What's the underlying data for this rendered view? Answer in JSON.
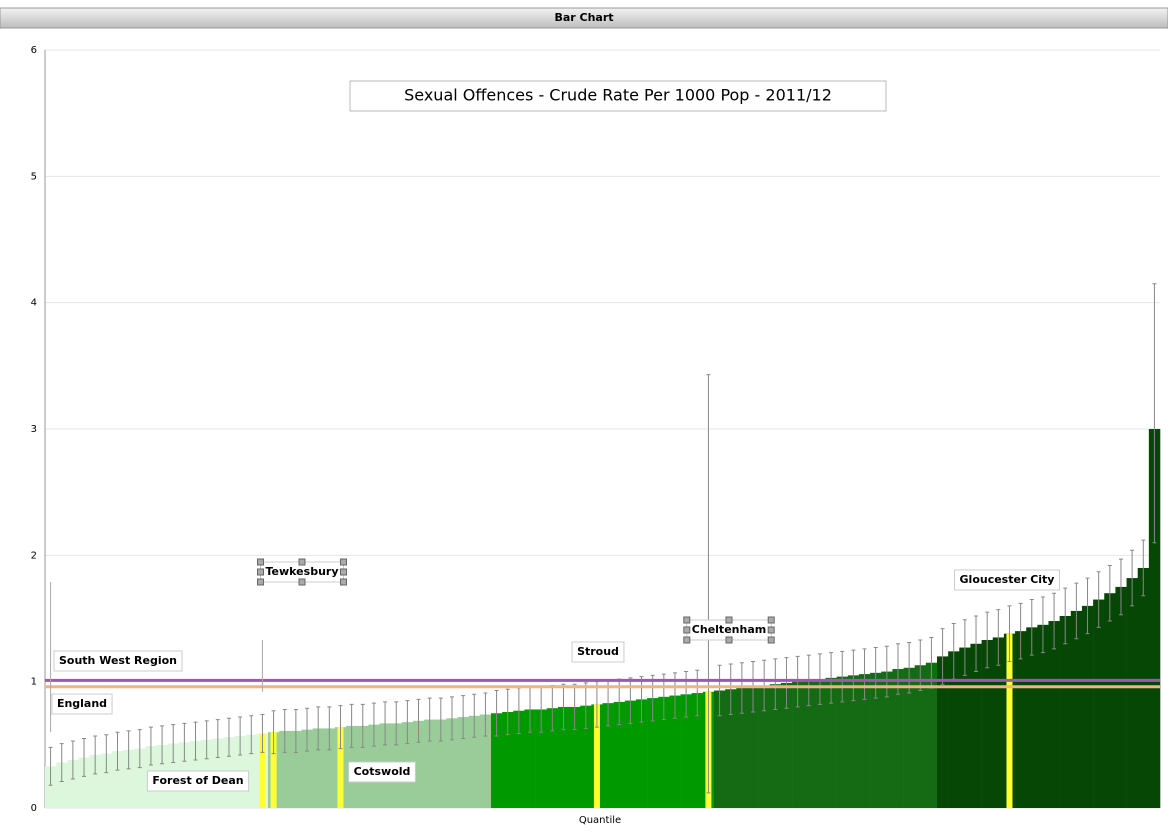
{
  "window": {
    "title": "Bar Chart"
  },
  "chart_data": {
    "type": "bar",
    "title": "Sexual Offences - Crude Rate Per 1000 Pop - 2011/12",
    "xlabel": "Quantile",
    "ylim": [
      0,
      6
    ],
    "yticks": [
      0,
      1,
      2,
      3,
      4,
      5,
      6
    ],
    "grid": true,
    "highlight_color": "#ffff33",
    "error_color": "#888888",
    "series": [
      {
        "color": "#dcf7dc",
        "values": [
          0.33,
          0.36,
          0.38,
          0.4,
          0.42,
          0.43,
          0.45,
          0.46,
          0.47,
          0.49,
          0.5,
          0.51,
          0.52,
          0.53,
          0.54,
          0.55,
          0.56,
          0.57,
          0.58,
          0.59
        ],
        "lower": [
          0.18,
          0.21,
          0.23,
          0.25,
          0.27,
          0.28,
          0.3,
          0.31,
          0.32,
          0.34,
          0.35,
          0.36,
          0.37,
          0.38,
          0.39,
          0.4,
          0.41,
          0.42,
          0.43,
          0.44
        ],
        "upper": [
          0.48,
          0.51,
          0.53,
          0.55,
          0.57,
          0.58,
          0.6,
          0.61,
          0.62,
          0.64,
          0.65,
          0.66,
          0.67,
          0.68,
          0.69,
          0.7,
          0.71,
          0.72,
          0.73,
          0.74
        ],
        "labels": [
          null,
          null,
          null,
          null,
          null,
          null,
          null,
          null,
          null,
          null,
          null,
          null,
          null,
          null,
          null,
          null,
          null,
          null,
          null,
          "Forest of Dean"
        ]
      },
      {
        "color": "#99cc99",
        "values": [
          0.6,
          0.61,
          0.61,
          0.62,
          0.63,
          0.63,
          0.64,
          0.65,
          0.65,
          0.66,
          0.67,
          0.67,
          0.68,
          0.69,
          0.7,
          0.7,
          0.71,
          0.72,
          0.73,
          0.74
        ],
        "lower": [
          0.43,
          0.44,
          0.44,
          0.45,
          0.46,
          0.46,
          0.47,
          0.48,
          0.48,
          0.49,
          0.5,
          0.5,
          0.51,
          0.52,
          0.53,
          0.53,
          0.54,
          0.55,
          0.56,
          0.57
        ],
        "upper": [
          0.77,
          0.78,
          0.78,
          0.79,
          0.8,
          0.8,
          0.81,
          0.82,
          0.82,
          0.83,
          0.84,
          0.84,
          0.85,
          0.86,
          0.87,
          0.87,
          0.88,
          0.89,
          0.9,
          0.91
        ],
        "labels": [
          "Tewkesbury",
          null,
          null,
          null,
          null,
          null,
          "Cotswold",
          null,
          null,
          null,
          null,
          null,
          null,
          null,
          null,
          null,
          null,
          null,
          null,
          null
        ]
      },
      {
        "color": "#009900",
        "values": [
          0.75,
          0.76,
          0.77,
          0.78,
          0.78,
          0.79,
          0.8,
          0.8,
          0.81,
          0.82,
          0.83,
          0.84,
          0.85,
          0.86,
          0.87,
          0.88,
          0.89,
          0.9,
          0.91,
          0.92
        ],
        "lower": [
          0.57,
          0.58,
          0.59,
          0.6,
          0.6,
          0.61,
          0.62,
          0.62,
          0.63,
          0.64,
          0.65,
          0.66,
          0.67,
          0.68,
          0.69,
          0.7,
          0.71,
          0.72,
          0.73,
          0.12
        ],
        "upper": [
          0.93,
          0.94,
          0.95,
          0.96,
          0.96,
          0.97,
          0.98,
          0.98,
          0.99,
          1.0,
          1.01,
          1.02,
          1.03,
          1.04,
          1.05,
          1.06,
          1.07,
          1.08,
          1.09,
          3.43
        ],
        "labels": [
          null,
          null,
          null,
          null,
          null,
          null,
          null,
          null,
          null,
          "Stroud",
          null,
          null,
          null,
          null,
          null,
          null,
          null,
          null,
          null,
          "Cheltenham"
        ]
      },
      {
        "color": "#146b14",
        "values": [
          0.93,
          0.94,
          0.95,
          0.96,
          0.97,
          0.98,
          0.99,
          1.0,
          1.01,
          1.02,
          1.03,
          1.04,
          1.05,
          1.06,
          1.07,
          1.08,
          1.1,
          1.11,
          1.13,
          1.15
        ],
        "lower": [
          0.73,
          0.74,
          0.75,
          0.76,
          0.77,
          0.78,
          0.79,
          0.8,
          0.81,
          0.82,
          0.83,
          0.84,
          0.85,
          0.86,
          0.87,
          0.88,
          0.9,
          0.91,
          0.93,
          0.95
        ],
        "upper": [
          1.13,
          1.14,
          1.15,
          1.16,
          1.17,
          1.18,
          1.19,
          1.2,
          1.21,
          1.22,
          1.23,
          1.24,
          1.25,
          1.26,
          1.27,
          1.28,
          1.3,
          1.31,
          1.33,
          1.35
        ],
        "labels": [
          null,
          null,
          null,
          null,
          null,
          null,
          null,
          null,
          null,
          null,
          null,
          null,
          null,
          null,
          null,
          null,
          null,
          null,
          null,
          null
        ]
      },
      {
        "color": "#064706",
        "values": [
          1.2,
          1.24,
          1.27,
          1.3,
          1.33,
          1.35,
          1.38,
          1.4,
          1.43,
          1.45,
          1.48,
          1.52,
          1.56,
          1.6,
          1.65,
          1.7,
          1.75,
          1.82,
          1.9,
          3.0
        ],
        "lower": [
          0.98,
          1.02,
          1.05,
          1.08,
          1.11,
          1.13,
          1.16,
          1.18,
          1.21,
          1.23,
          1.26,
          1.3,
          1.34,
          1.38,
          1.43,
          1.48,
          1.53,
          1.6,
          1.68,
          2.1
        ],
        "upper": [
          1.42,
          1.46,
          1.49,
          1.52,
          1.55,
          1.57,
          1.6,
          1.62,
          1.65,
          1.67,
          1.7,
          1.74,
          1.78,
          1.82,
          1.87,
          1.92,
          1.97,
          2.04,
          2.12,
          4.15
        ],
        "labels": [
          null,
          null,
          null,
          null,
          null,
          null,
          "Gloucester City",
          null,
          null,
          null,
          null,
          null,
          null,
          null,
          null,
          null,
          null,
          null,
          null,
          null
        ]
      }
    ],
    "reference_lines": [
      {
        "label": "South West Region",
        "value": 1.01,
        "color": "#9b59b6"
      },
      {
        "label": "England",
        "value": 0.96,
        "color": "#f4b183"
      }
    ]
  }
}
